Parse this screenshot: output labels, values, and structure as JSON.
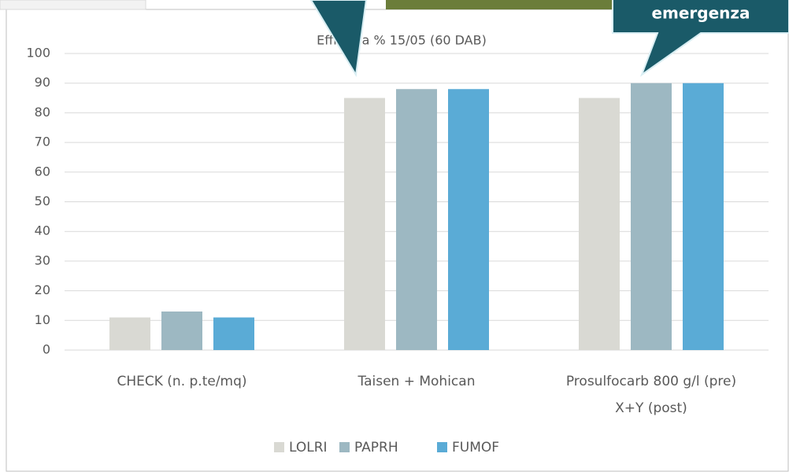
{
  "chart_data": {
    "type": "bar",
    "title": "Efficacia % 15/05 (60 DAB)",
    "categories": [
      "CHECK (n. p.te/mq)",
      "Taisen +  Mohican",
      "Prosulfocarb 800 g/l (pre)\nX+Y (post)"
    ],
    "series": [
      {
        "name": "LOLRI",
        "color": "#d9d9d3",
        "values": [
          11,
          85,
          85
        ]
      },
      {
        "name": "PAPRH",
        "color": "#9db8c2",
        "values": [
          13,
          88,
          90
        ]
      },
      {
        "name": "FUMOF",
        "color": "#5aabd6",
        "values": [
          11,
          88,
          90
        ]
      }
    ],
    "ylim": [
      0,
      100
    ],
    "yticks": [
      0,
      10,
      20,
      30,
      40,
      50,
      60,
      70,
      80,
      90,
      100
    ],
    "grid": true,
    "legend": "bottom",
    "annotation": "emergenza"
  }
}
